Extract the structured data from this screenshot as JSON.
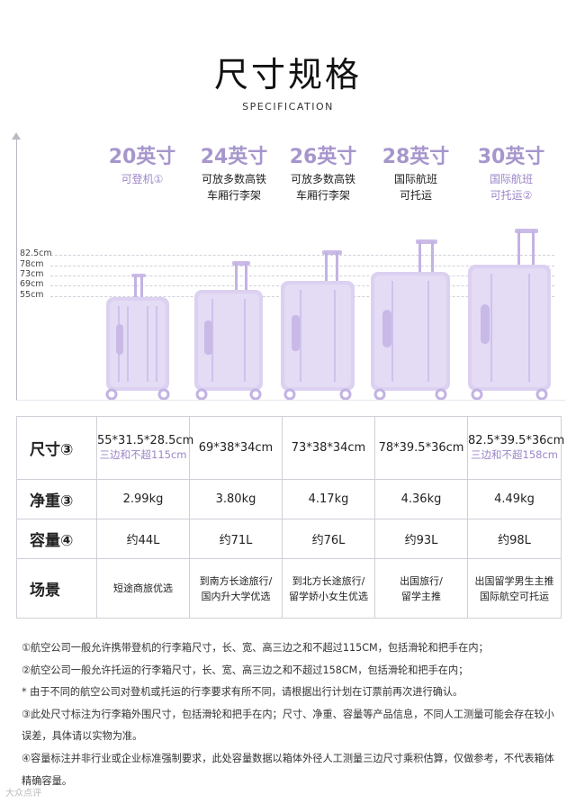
{
  "title": "尺寸规格",
  "subtitle": "SPECIFICATION",
  "axis_ticks": [
    "82.5cm",
    "78cm",
    "73cm",
    "69cm",
    "55cm"
  ],
  "models": [
    {
      "size": "20英寸",
      "desc1": "可登机①",
      "desc2": "",
      "accent": true
    },
    {
      "size": "24英寸",
      "desc1": "可放多数高铁",
      "desc2": "车厢行李架",
      "accent": false
    },
    {
      "size": "26英寸",
      "desc1": "可放多数高铁",
      "desc2": "车厢行李架",
      "accent": false
    },
    {
      "size": "28英寸",
      "desc1": "国际航班",
      "desc2": "可托运",
      "accent": false
    },
    {
      "size": "30英寸",
      "desc1": "国际航班",
      "desc2": "可托运②",
      "accent": true
    }
  ],
  "table": {
    "row_labels": {
      "size": "尺寸③",
      "weight": "净重③",
      "capacity": "容量④",
      "scene": "场景"
    },
    "dimensions": [
      "55*31.5*28.5cm",
      "69*38*34cm",
      "73*38*34cm",
      "78*39.5*36cm",
      "82.5*39.5*36cm"
    ],
    "dimension_notes": [
      "三边和不超115cm",
      "",
      "",
      "",
      "三边和不超158cm"
    ],
    "weights": [
      "2.99kg",
      "3.80kg",
      "4.17kg",
      "4.36kg",
      "4.49kg"
    ],
    "capacities": [
      "约44L",
      "约71L",
      "约76L",
      "约93L",
      "约98L"
    ],
    "scenes_line1": [
      "短途商旅优选",
      "到南方长途旅行/",
      "到北方长途旅行/",
      "出国旅行/",
      "出国留学男生主推"
    ],
    "scenes_line2": [
      "",
      "国内升大学优选",
      "留学娇小女生优选",
      "留学主推",
      "国际航空可托运"
    ]
  },
  "notes": [
    "①航空公司一般允许携带登机的行李箱尺寸，长、宽、高三边之和不超过115CM，包括滑轮和把手在内；",
    "②航空公司一般允许托运的行李箱尺寸，长、宽、高三边之和不超过158CM，包括滑轮和把手在内；",
    "* 由于不同的航空公司对登机或托运的行李要求有所不同，请根据出行计划在订票前再次进行确认。",
    "③此处尺寸标注为行李箱外围尺寸，包括滑轮和把手在内；尺寸、净重、容量等产品信息，不同人工测量可能会存在较小误差，具体请以实物为准。",
    "④容量标注并非行业或企业标准强制要求，此处容量数据以箱体外径人工测量三边尺寸乘积估算，仅做参考，不代表箱体精确容量。"
  ],
  "watermark": "大众点评",
  "colors": {
    "accent": "#a796cc",
    "suitcase": "#d9cdef",
    "suitcase_dark": "#b9a7dc"
  }
}
